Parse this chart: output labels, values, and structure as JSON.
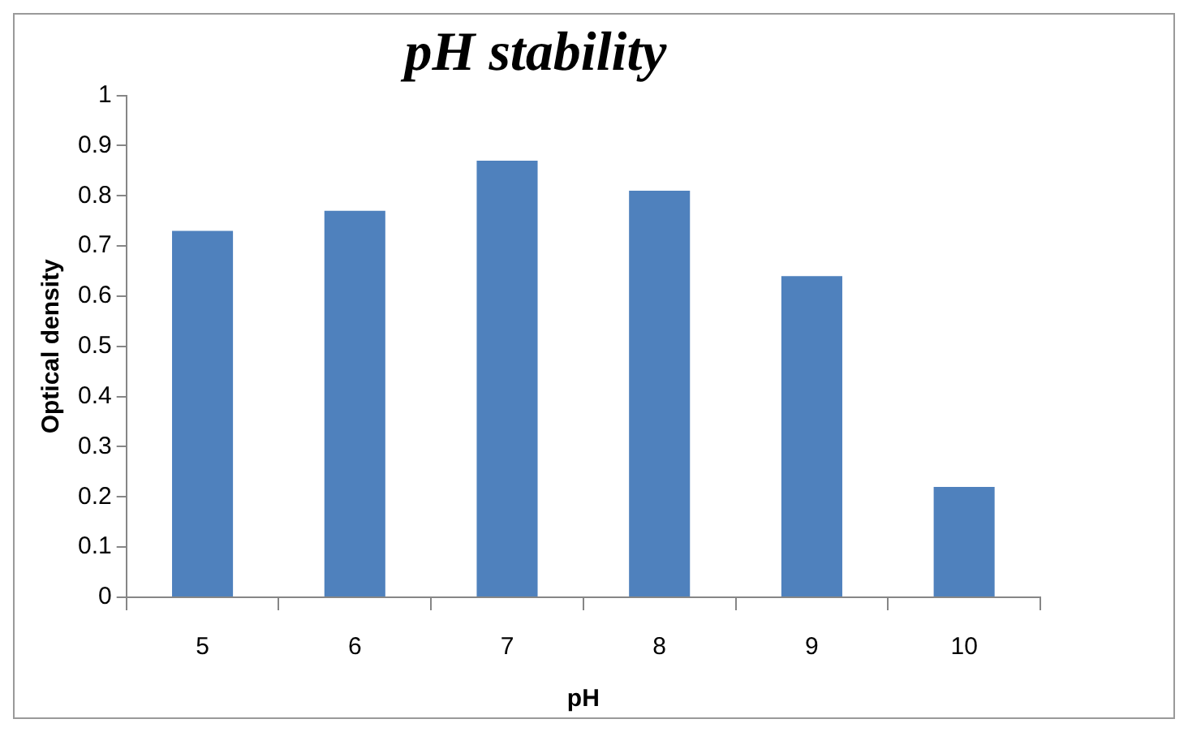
{
  "chart_data": {
    "type": "bar",
    "title": "pH stability",
    "xlabel": "pH",
    "ylabel": "Optical density",
    "categories": [
      "5",
      "6",
      "7",
      "8",
      "9",
      "10"
    ],
    "values": [
      0.73,
      0.77,
      0.87,
      0.81,
      0.64,
      0.22
    ],
    "color": "#4f81bd",
    "ylim": [
      0,
      1
    ],
    "yticks": [
      0,
      0.1,
      0.2,
      0.3,
      0.4,
      0.5,
      0.6,
      0.7,
      0.8,
      0.9,
      1
    ],
    "grid": false,
    "legend": false
  }
}
